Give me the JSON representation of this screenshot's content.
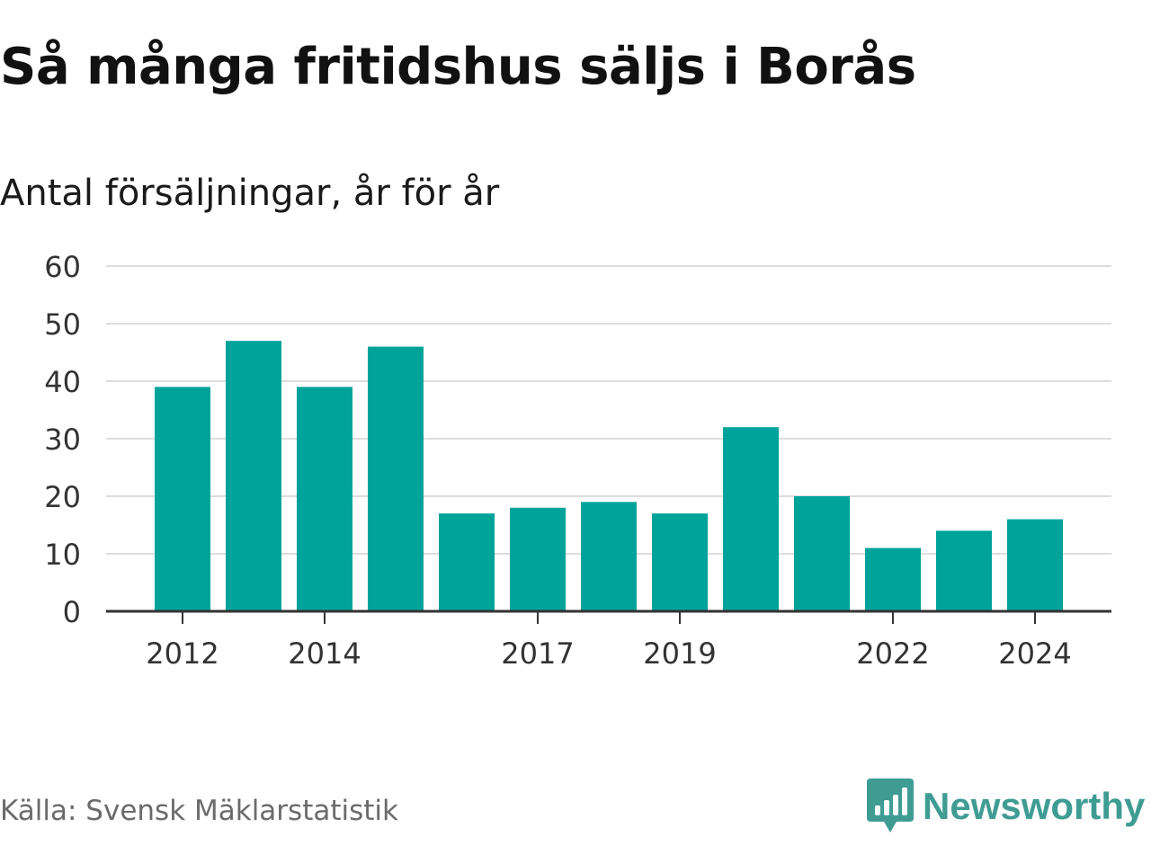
{
  "header": {
    "title": "Så många fritidshus säljs i Borås",
    "subtitle": "Antal försäljningar, år för år"
  },
  "footer": {
    "source": "Källa: Svensk Mäklarstatistik",
    "brand": "Newsworthy",
    "brand_icon": "bar-chart-speech-bubble-icon"
  },
  "colors": {
    "bar": "#00a39a",
    "grid": "#dddddd",
    "axis": "#333333",
    "brand": "#3f9c93"
  },
  "chart_data": {
    "type": "bar",
    "title": "Så många fritidshus säljs i Borås",
    "subtitle": "Antal försäljningar, år för år",
    "xlabel": "",
    "ylabel": "",
    "categories": [
      2012,
      2013,
      2014,
      2015,
      2016,
      2017,
      2018,
      2019,
      2020,
      2021,
      2022,
      2023,
      2024
    ],
    "values": [
      39,
      47,
      39,
      46,
      17,
      18,
      19,
      17,
      32,
      20,
      11,
      14,
      16
    ],
    "x_tick_labels": [
      "2012",
      "2014",
      "2017",
      "2019",
      "2022",
      "2024"
    ],
    "y_ticks": [
      0,
      10,
      20,
      30,
      40,
      50,
      60
    ],
    "ylim": [
      0,
      60
    ],
    "grid": true,
    "legend": "none"
  }
}
